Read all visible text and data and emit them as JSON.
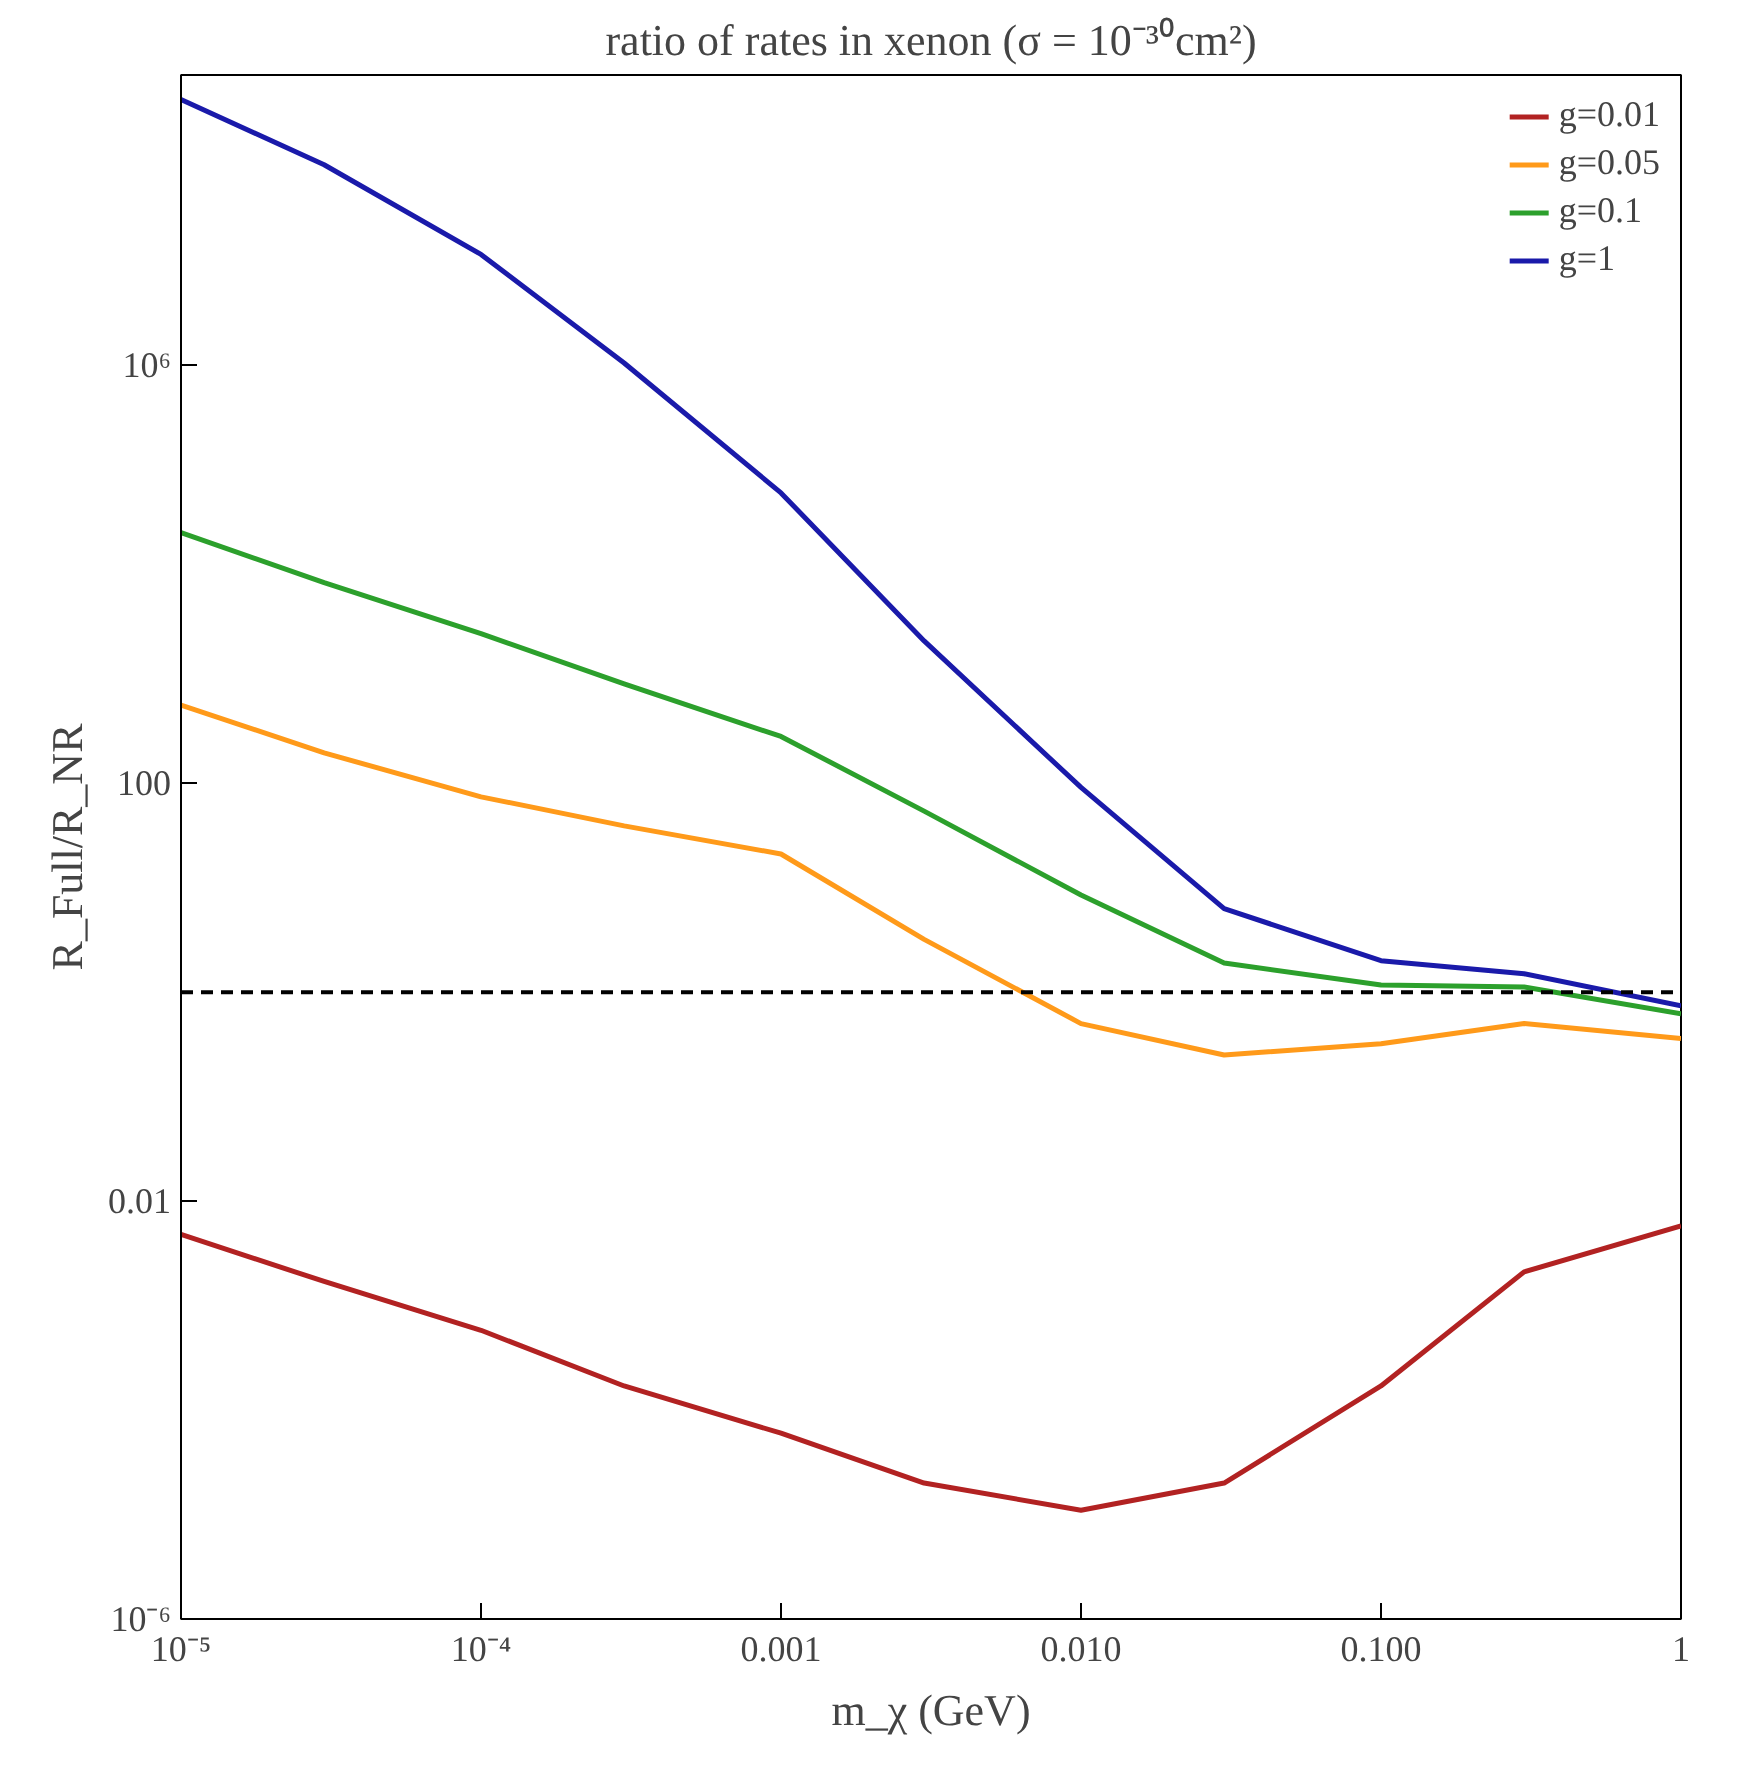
{
  "chart_data": {
    "type": "line",
    "title": "ratio of rates in xenon (σ = 10⁻³⁰cm²)",
    "xlabel": "m_χ (GeV)",
    "ylabel": "R_Full/R_NR",
    "log": "xy",
    "grid": false,
    "legend": "top right",
    "line_style": "solid",
    "marker": "none",
    "x": [
      1e-05,
      3e-05,
      0.0001,
      0.0003,
      0.001,
      0.003,
      0.01,
      0.03,
      0.1,
      0.3,
      1
    ],
    "xlim": [
      1e-05,
      1
    ],
    "ylim": [
      1e-06,
      600000000.0
    ],
    "xticks": [
      {
        "value": 1e-05,
        "label": "10⁻⁵"
      },
      {
        "value": 0.0001,
        "label": "10⁻⁴"
      },
      0.001,
      {
        "value": 0.01,
        "label": "0.010"
      },
      {
        "value": 0.1,
        "label": "0.100"
      },
      1
    ],
    "yticks": [
      {
        "value": 1e-06,
        "label": "10⁻⁶"
      },
      0.01,
      100,
      {
        "value": 1000000.0,
        "label": "10⁶"
      }
    ],
    "series": [
      {
        "name": "g=0.01",
        "color": "#b22222",
        "values": [
          0.0048,
          0.0017,
          0.00058,
          0.00017,
          6e-05,
          2e-05,
          1.1e-05,
          2e-05,
          0.00017,
          0.0021,
          0.0058
        ]
      },
      {
        "name": "g=0.05",
        "color": "#ff9a1a",
        "values": [
          560,
          195,
          74,
          39,
          21,
          3.2,
          0.5,
          0.25,
          0.32,
          0.5,
          0.36
        ]
      },
      {
        "name": "g=0.1",
        "color": "#2ca02c",
        "values": [
          25000,
          8300,
          2700,
          890,
          280,
          54,
          8.5,
          1.9,
          1.17,
          1.12,
          0.62
        ]
      },
      {
        "name": "g=1",
        "color": "#1a1aaa",
        "values": [
          350000000.0,
          83000000.0,
          11500000.0,
          1050000.0,
          60000,
          2300,
          91,
          6.3,
          2.0,
          1.5,
          0.74
        ]
      }
    ],
    "ref_lines": [
      {
        "axis": "y",
        "value": 1,
        "color": "#000000",
        "line_style": "dashed"
      }
    ]
  }
}
